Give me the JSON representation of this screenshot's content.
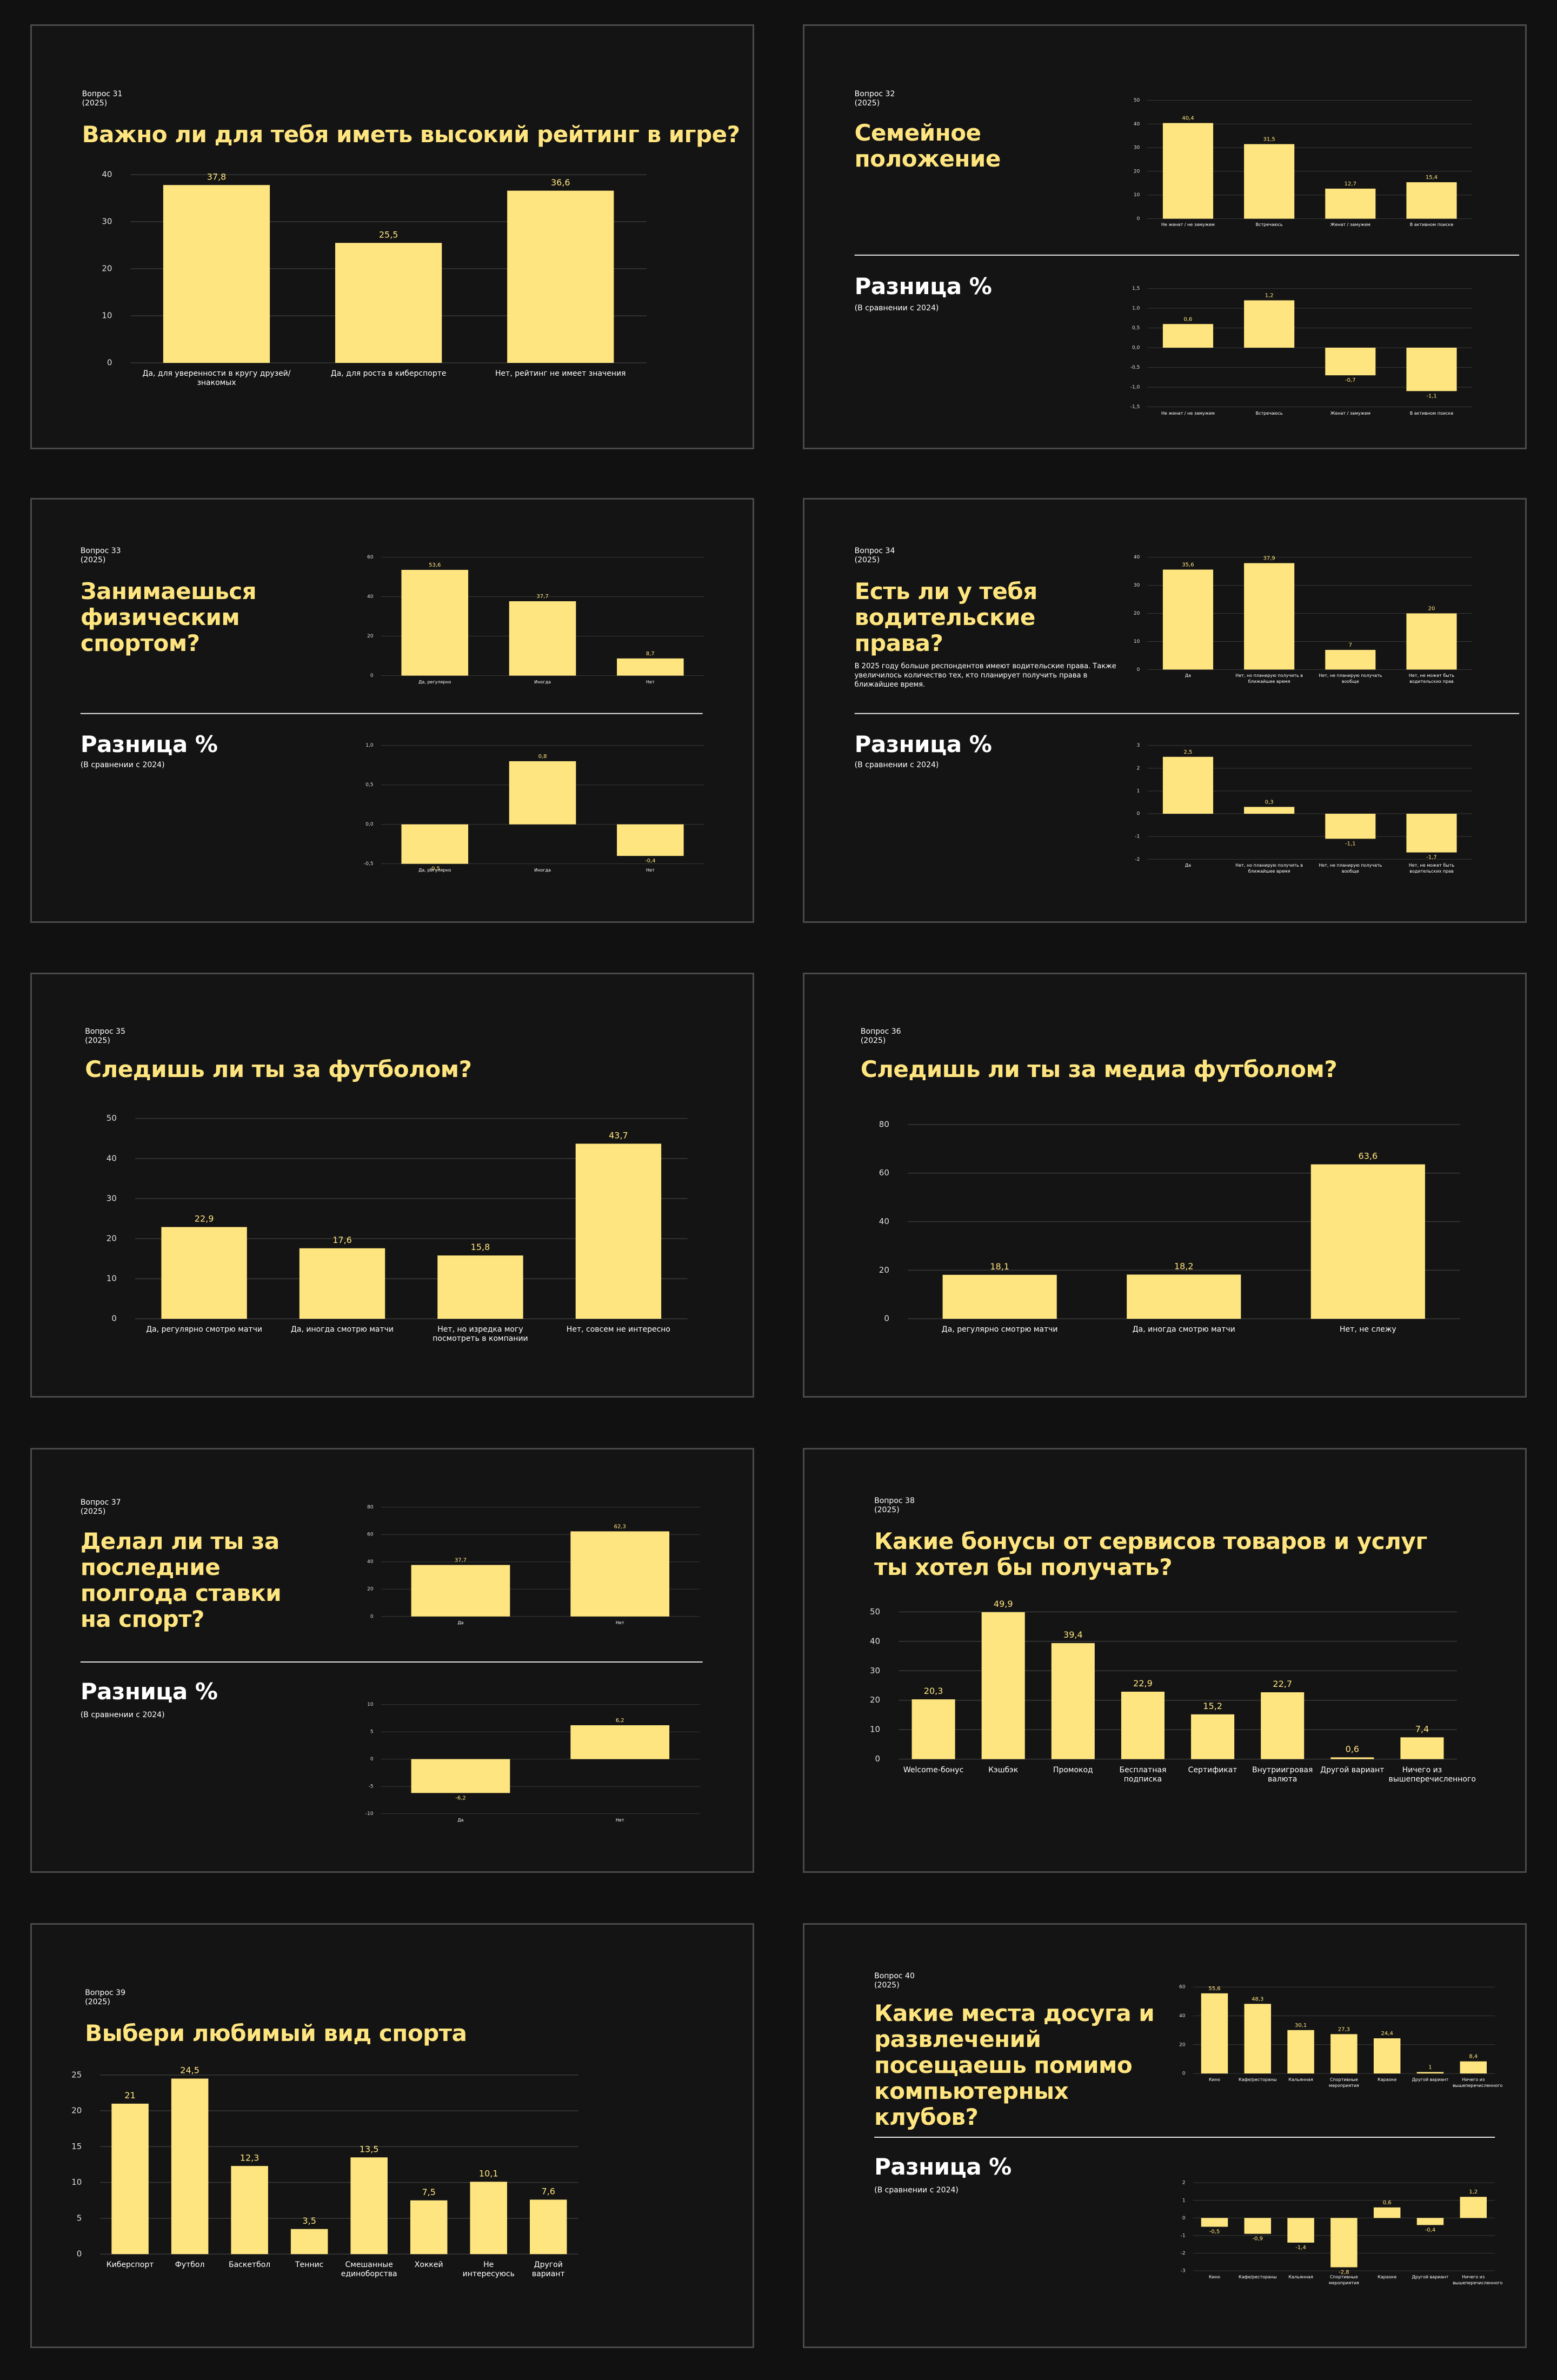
{
  "slides": [
    {
      "label": "Вопрос 31",
      "year": "(2025)",
      "title": "Важно ли для тебя иметь высокий рейтинг в игре?",
      "chart": {
        "type": "bar",
        "categories": [
          "Да, для уверенности в кругу друзей/знакомых",
          "Да, для роста в киберспорте",
          "Нет, рейтинг не имеет значения"
        ],
        "values": [
          37.8,
          25.5,
          36.6
        ],
        "value_labels": [
          "37,8",
          "25,5",
          "36,6"
        ],
        "ylim": [
          0,
          40
        ],
        "yticks": [
          0,
          10,
          20,
          30,
          40
        ],
        "grid": true,
        "color": "#ffe57f"
      }
    },
    {
      "label": "Вопрос 32",
      "year": "(2025)",
      "title": "Семейное положение",
      "chart": {
        "type": "bar",
        "categories": [
          "Не женат / не замужем",
          "Встречаюсь",
          "Женат / замужем",
          "В активном поиске"
        ],
        "values": [
          40.4,
          31.5,
          12.7,
          15.4
        ],
        "value_labels": [
          "40,4",
          "31,5",
          "12,7",
          "15,4"
        ],
        "ylim": [
          0,
          50
        ],
        "yticks": [
          0,
          10,
          20,
          30,
          40,
          50
        ],
        "grid": true,
        "color": "#ffe57f"
      },
      "diff_title": "Разница %",
      "diff_subtitle": "(В сравнении с 2024)",
      "diff_chart": {
        "type": "bar",
        "categories": [
          "Не женат / не замужем",
          "Встречаюсь",
          "Женат / замужем",
          "В активном поиске"
        ],
        "values": [
          0.6,
          1.2,
          -0.7,
          -1.1
        ],
        "value_labels": [
          "0,6",
          "1,2",
          "-0,7",
          "-1,1"
        ],
        "ylim": [
          -1.5,
          1.5
        ],
        "yticks": [
          {
            "value": 1.5,
            "label": "1,5"
          },
          {
            "value": 1,
            "label": "1,0"
          },
          {
            "value": 0.5,
            "label": "0,5"
          },
          {
            "value": 0,
            "label": "0,0"
          },
          {
            "value": -0.5,
            "label": "-0,5"
          },
          {
            "value": -1,
            "label": "-1,0"
          },
          {
            "value": -1.5,
            "label": "-1,5"
          }
        ],
        "grid": true,
        "color": "#ffe57f"
      }
    },
    {
      "label": "Вопрос 33",
      "year": "(2025)",
      "title": "Занимаешься физическим спортом?",
      "chart": {
        "type": "bar",
        "categories": [
          "Да, регулярно",
          "Иногда",
          "Нет"
        ],
        "values": [
          53.6,
          37.7,
          8.7
        ],
        "value_labels": [
          "53,6",
          "37,7",
          "8,7"
        ],
        "ylim": [
          0,
          60
        ],
        "yticks": [
          0,
          20,
          40,
          60
        ],
        "grid": true,
        "color": "#ffe57f"
      },
      "diff_title": "Разница %",
      "diff_subtitle": "(В сравнении с 2024)",
      "diff_chart": {
        "type": "bar",
        "categories": [
          "Да, регулярно",
          "Иногда",
          "Нет"
        ],
        "values": [
          -0.5,
          0.8,
          -0.4
        ],
        "value_labels": [
          "-0,5",
          "0,8",
          "-0,4"
        ],
        "ylim": [
          -0.5,
          1
        ],
        "yticks": [
          {
            "value": 1,
            "label": "1,0"
          },
          {
            "value": 0.5,
            "label": "0,5"
          },
          {
            "value": 0,
            "label": "0,0"
          },
          {
            "value": -0.5,
            "label": "-0,5"
          }
        ],
        "grid": true,
        "color": "#ffe57f"
      }
    },
    {
      "label": "Вопрос 34",
      "year": "(2025)",
      "title": "Есть ли у тебя водительские права?",
      "note": "В 2025 году больше респондентов имеют водительские права. Также увеличилось количество тех, кто планирует получить права в ближайшее время.",
      "chart": {
        "type": "bar",
        "categories": [
          "Да",
          "Нет, но планирую получить в ближайшее время",
          "Нет, не планирую получать вообще",
          "Нет, не может быть водительских прав"
        ],
        "values": [
          35.6,
          37.9,
          7,
          20
        ],
        "value_labels": [
          "35,6",
          "37,9",
          "7",
          "20"
        ],
        "ylim": [
          0,
          40
        ],
        "yticks": [
          0,
          10,
          20,
          30,
          40
        ],
        "grid": true,
        "color": "#ffe57f"
      },
      "diff_title": "Разница %",
      "diff_subtitle": "(В сравнении с 2024)",
      "diff_chart": {
        "type": "bar",
        "categories": [
          "Да",
          "Нет, но планирую получить в ближайшее время",
          "Нет, не планирую получать вообще",
          "Нет, не может быть водительских прав"
        ],
        "values": [
          2.5,
          0.3,
          -1.1,
          -1.7
        ],
        "value_labels": [
          "2,5",
          "0,3",
          "-1,1",
          "-1,7"
        ],
        "ylim": [
          -2,
          3
        ],
        "yticks": [
          3,
          2,
          1,
          0,
          -1,
          -2
        ],
        "grid": true,
        "color": "#ffe57f"
      }
    },
    {
      "label": "Вопрос 35",
      "year": "(2025)",
      "title": "Следишь ли ты за футболом?",
      "chart": {
        "type": "bar",
        "categories": [
          "Да, регулярно смотрю матчи",
          "Да, иногда смотрю матчи",
          "Нет, но изредка могу посмотреть в компании",
          "Нет, совсем не интересно"
        ],
        "values": [
          22.9,
          17.6,
          15.8,
          43.7
        ],
        "value_labels": [
          "22,9",
          "17,6",
          "15,8",
          "43,7"
        ],
        "ylim": [
          0,
          50
        ],
        "yticks": [
          0,
          10,
          20,
          30,
          40,
          50
        ],
        "grid": true,
        "color": "#ffe57f"
      }
    },
    {
      "label": "Вопрос 36",
      "year": "(2025)",
      "title": "Следишь ли ты за медиа футболом?",
      "chart": {
        "type": "bar",
        "categories": [
          "Да, регулярно смотрю матчи",
          "Да, иногда смотрю матчи",
          "Нет, не слежу"
        ],
        "values": [
          18.1,
          18.2,
          63.6
        ],
        "value_labels": [
          "18,1",
          "18,2",
          "63,6"
        ],
        "ylim": [
          0,
          80
        ],
        "yticks": [
          0,
          20,
          40,
          60,
          80
        ],
        "grid": true,
        "color": "#ffe57f"
      }
    },
    {
      "label": "Вопрос 37",
      "year": "(2025)",
      "title": "Делал ли ты за последние полгода ставки на спорт?",
      "chart": {
        "type": "bar",
        "categories": [
          "Да",
          "Нет"
        ],
        "values": [
          37.7,
          62.3
        ],
        "value_labels": [
          "37,7",
          "62,3"
        ],
        "ylim": [
          0,
          80
        ],
        "yticks": [
          0,
          20,
          40,
          60,
          80
        ],
        "grid": true,
        "color": "#ffe57f"
      },
      "diff_title": "Разница %",
      "diff_subtitle": "(В сравнении с 2024)",
      "diff_chart": {
        "type": "bar",
        "categories": [
          "Да",
          "Нет"
        ],
        "values": [
          -6.2,
          6.2
        ],
        "value_labels": [
          "-6,2",
          "6,2"
        ],
        "ylim": [
          -10,
          10
        ],
        "yticks": [
          10,
          5,
          0,
          -5,
          -10
        ],
        "grid": true,
        "color": "#ffe57f"
      }
    },
    {
      "label": "Вопрос 38",
      "year": "(2025)",
      "title": "Какие бонусы от сервисов товаров и услуг ты хотел бы получать?",
      "chart": {
        "type": "bar",
        "categories": [
          "Welcome-бонус",
          "Кэшбэк",
          "Промокод",
          "Бесплатная подписка",
          "Сертификат",
          "Внутриигровая валюта",
          "Другой вариант",
          "Ничего из вышеперечисленного"
        ],
        "values": [
          20.3,
          49.9,
          39.4,
          22.9,
          15.2,
          22.7,
          0.6,
          7.4
        ],
        "value_labels": [
          "20,3",
          "49,9",
          "39,4",
          "22,9",
          "15,2",
          "22,7",
          "0,6",
          "7,4"
        ],
        "ylim": [
          0,
          50
        ],
        "yticks": [
          0,
          10,
          20,
          30,
          40,
          50
        ],
        "grid": true,
        "color": "#ffe57f"
      }
    },
    {
      "label": "Вопрос 39",
      "year": "(2025)",
      "title": "Выбери любимый вид спорта",
      "chart": {
        "type": "bar",
        "categories": [
          "Киберспорт",
          "Футбол",
          "Баскетбол",
          "Теннис",
          "Смешанные единоборства",
          "Хоккей",
          "Не интересуюсь",
          "Другой вариант"
        ],
        "values": [
          21,
          24.5,
          12.3,
          3.5,
          13.5,
          7.5,
          10.1,
          7.6
        ],
        "value_labels": [
          "21",
          "24,5",
          "12,3",
          "3,5",
          "13,5",
          "7,5",
          "10,1",
          "7,6"
        ],
        "ylim": [
          0,
          25
        ],
        "yticks": [
          0,
          5,
          10,
          15,
          20,
          25
        ],
        "grid": true,
        "color": "#ffe57f"
      }
    },
    {
      "label": "Вопрос 40",
      "year": "(2025)",
      "title": "Какие места досуга и развлечений посещаешь помимо компьютерных клубов?",
      "chart": {
        "type": "bar",
        "categories": [
          "Кино",
          "Кафе/рестораны",
          "Кальянная",
          "Спортивные мероприятия",
          "Караоке",
          "Другой вариант",
          "Ничего из вышеперечисленного"
        ],
        "values": [
          55.6,
          48.3,
          30.1,
          27.3,
          24.4,
          1,
          8.4
        ],
        "value_labels": [
          "55,6",
          "48,3",
          "30,1",
          "27,3",
          "24,4",
          "1",
          "8,4"
        ],
        "ylim": [
          0,
          60
        ],
        "yticks": [
          0,
          20,
          40,
          60
        ],
        "grid": true,
        "color": "#ffe57f"
      },
      "diff_title": "Разница %",
      "diff_subtitle": "(В сравнении с 2024)",
      "diff_chart": {
        "type": "bar",
        "categories": [
          "Кино",
          "Кафе/рестораны",
          "Кальянная",
          "Спортивные мероприятия",
          "Караоке",
          "Другой вариант",
          "Ничего из вышеперечисленного"
        ],
        "values": [
          -0.5,
          -0.9,
          -1.4,
          -2.8,
          0.6,
          -0.4,
          1.2
        ],
        "value_labels": [
          "-0,5",
          "-0,9",
          "-1,4",
          "-2,8",
          "0,6",
          "-0,4",
          "1,2"
        ],
        "ylim": [
          -3,
          2
        ],
        "yticks": [
          2,
          1,
          0,
          -1,
          -2,
          -3
        ],
        "grid": true,
        "color": "#ffe57f"
      }
    }
  ]
}
